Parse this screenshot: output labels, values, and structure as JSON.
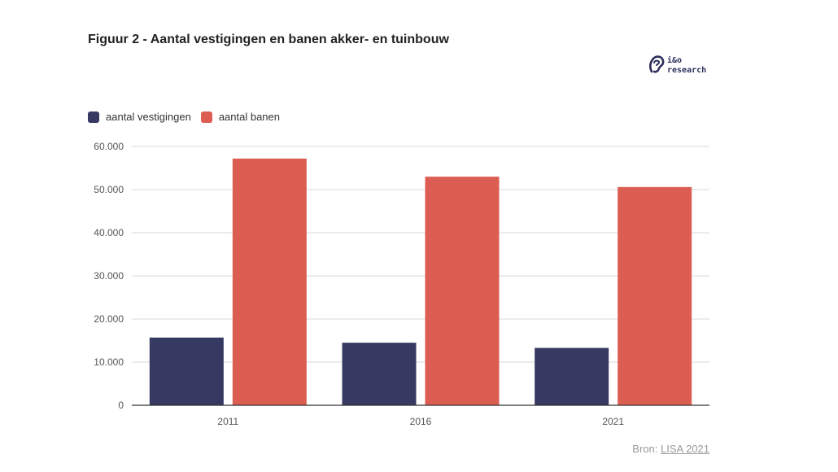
{
  "title": "Figuur 2 - Aantal vestigingen en banen akker- en tuinbouw",
  "logo": {
    "top": "i&o",
    "bottom": "research"
  },
  "source": {
    "prefix": "Bron:",
    "link": "LISA 2021"
  },
  "colors": {
    "vestigingen": "#363a63",
    "banen": "#dc5d52",
    "grid": "#d9d9d9",
    "axis": "#333333"
  },
  "chart_data": {
    "type": "bar",
    "title": "Figuur 2 - Aantal vestigingen en banen akker- en tuinbouw",
    "categories": [
      "2011",
      "2016",
      "2021"
    ],
    "series": [
      {
        "name": "aantal vestigingen",
        "values": [
          15700,
          14500,
          13300
        ]
      },
      {
        "name": "aantal banen",
        "values": [
          57200,
          53000,
          50600
        ]
      }
    ],
    "y_ticks": [
      "0",
      "10.000",
      "20.000",
      "30.000",
      "40.000",
      "50.000",
      "60.000"
    ],
    "ylim": [
      0,
      60000
    ],
    "xlabel": "",
    "ylabel": "",
    "grid": true,
    "legend": "top-left"
  }
}
